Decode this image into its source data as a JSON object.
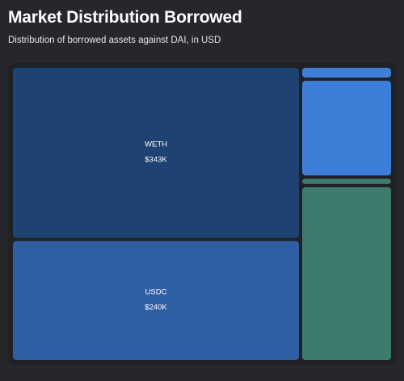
{
  "header": {
    "title": "Market Distribution Borrowed",
    "subtitle": "Distribution of borrowed assets against DAI, in USD"
  },
  "chart_data": {
    "type": "treemap",
    "title": "Market Distribution Borrowed",
    "subtitle": "Distribution of borrowed assets against DAI, in USD",
    "unit": "USD",
    "items": [
      {
        "name": "WETH",
        "value": 343000,
        "value_label": "$343K",
        "color": "#1e4271",
        "label_shown": true
      },
      {
        "name": "USDC",
        "value": 240000,
        "value_label": "$240K",
        "color": "#2f5fa3",
        "label_shown": true
      },
      {
        "name": "",
        "value": 6500,
        "value_label": "",
        "color": "#3d7fd8",
        "label_shown": false
      },
      {
        "name": "",
        "value": 63000,
        "value_label": "",
        "color": "#3d7fd8",
        "label_shown": false
      },
      {
        "name": "",
        "value": 3500,
        "value_label": "",
        "color": "#3f7a6f",
        "label_shown": false
      },
      {
        "name": "",
        "value": 115000,
        "value_label": "",
        "color": "#3f7a6f",
        "label_shown": false
      }
    ]
  }
}
